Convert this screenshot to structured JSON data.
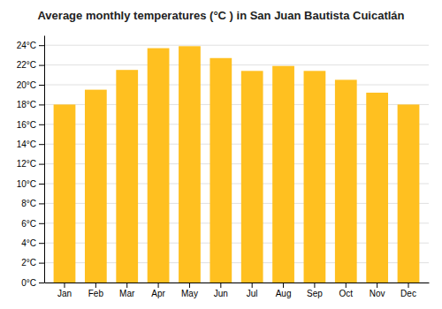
{
  "chart_data": {
    "type": "bar",
    "title": "Average monthly temperatures (°C ) in San Juan Bautista Cuicatlán",
    "categories": [
      "Jan",
      "Feb",
      "Mar",
      "Apr",
      "May",
      "Jun",
      "Jul",
      "Aug",
      "Sep",
      "Oct",
      "Nov",
      "Dec"
    ],
    "values": [
      18.0,
      19.5,
      21.5,
      23.7,
      23.9,
      22.7,
      21.4,
      21.9,
      21.4,
      20.5,
      19.2,
      18.0
    ],
    "color": "#FFC020",
    "ylim": [
      0,
      25
    ],
    "yticks": [
      {
        "value": 0,
        "label": "0°C"
      },
      {
        "value": 2,
        "label": "2°C"
      },
      {
        "value": 4,
        "label": "4°C"
      },
      {
        "value": 6,
        "label": "6°C"
      },
      {
        "value": 8,
        "label": "8°C"
      },
      {
        "value": 10,
        "label": "10°C"
      },
      {
        "value": 12,
        "label": "12°C"
      },
      {
        "value": 14,
        "label": "14°C"
      },
      {
        "value": 16,
        "label": "16°C"
      },
      {
        "value": 18,
        "label": "18°C"
      },
      {
        "value": 20,
        "label": "20°C"
      },
      {
        "value": 22,
        "label": "22°C"
      },
      {
        "value": 24,
        "label": "24°C"
      }
    ],
    "grid": true
  }
}
